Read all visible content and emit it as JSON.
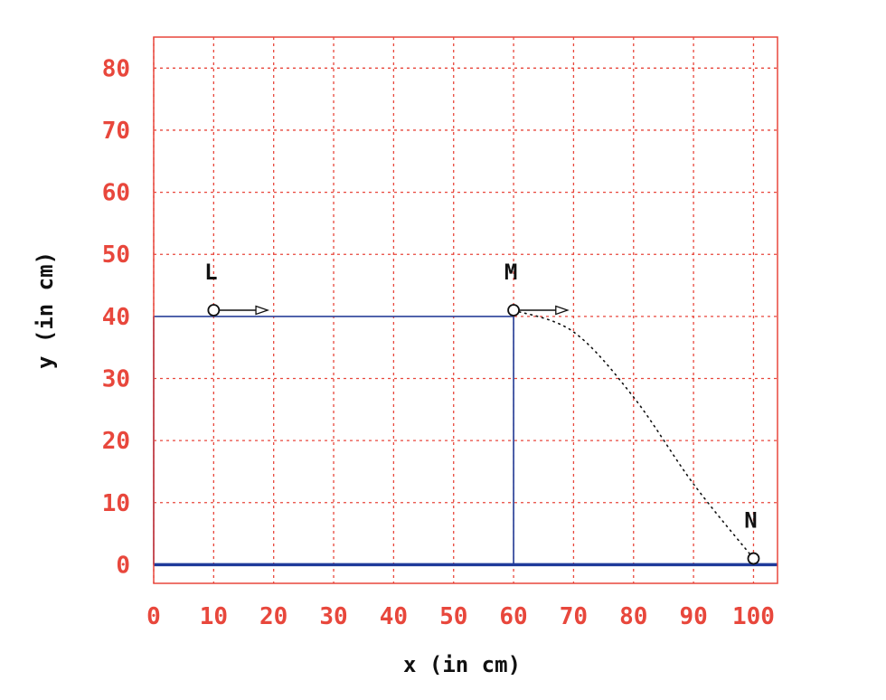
{
  "chart_data": {
    "type": "scatter",
    "xlabel": "x (in cm)",
    "ylabel": "y (in cm)",
    "xlim": [
      0,
      104
    ],
    "ylim": [
      -3,
      85
    ],
    "x_ticks": [
      0,
      10,
      20,
      30,
      40,
      50,
      60,
      70,
      80,
      90,
      100
    ],
    "y_ticks": [
      0,
      10,
      20,
      30,
      40,
      50,
      60,
      70,
      80
    ],
    "grid": true,
    "colors": {
      "frame": "#e8473c",
      "grid": "#e8473c",
      "tick_labels": "#e8473c",
      "table": "#3a4fa0",
      "ground": "#1f3a9a",
      "text": "#111111"
    },
    "table": {
      "x": [
        0,
        60
      ],
      "top": 40
    },
    "ground_y": 0,
    "points": [
      {
        "label": "L",
        "x": 10,
        "y": 41,
        "arrow_to_x": 19
      },
      {
        "label": "M",
        "x": 60,
        "y": 41,
        "arrow_to_x": 69
      },
      {
        "label": "N",
        "x": 100,
        "y": 1
      }
    ],
    "trajectory": {
      "style": "dotted",
      "x": [
        60,
        70,
        80,
        90,
        100
      ],
      "y": [
        41,
        37.5,
        27,
        13,
        1
      ]
    }
  }
}
